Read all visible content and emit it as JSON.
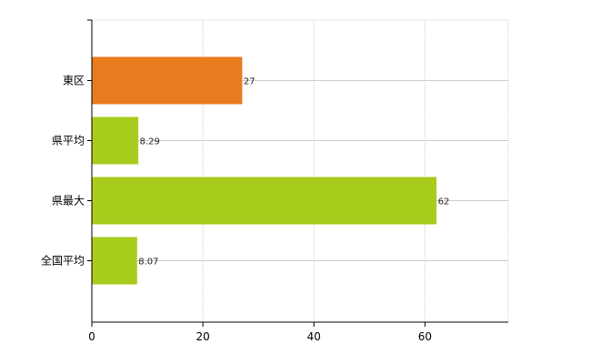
{
  "chart_data": {
    "type": "bar",
    "orientation": "horizontal",
    "categories": [
      "東区",
      "県平均",
      "県最大",
      "全国平均"
    ],
    "values": [
      27,
      8.29,
      62,
      8.07
    ],
    "data_labels": [
      "27",
      "8.29",
      "62",
      "8.07"
    ],
    "bar_colors": [
      "#e87b1e",
      "#a8cc1c",
      "#a8cc1c",
      "#a8cc1c"
    ],
    "xlim": [
      0,
      75
    ],
    "xticks": [
      0,
      20,
      40,
      60
    ],
    "xtick_labels": [
      "0",
      "20",
      "40",
      "60"
    ],
    "grid": true,
    "title": "",
    "xlabel": "",
    "ylabel": ""
  }
}
